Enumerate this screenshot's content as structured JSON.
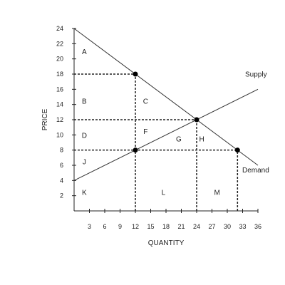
{
  "chart_data": {
    "type": "line",
    "xlabel": "QUANTITY",
    "ylabel": "PRICE",
    "xlim": [
      0,
      36
    ],
    "ylim": [
      0,
      24
    ],
    "x_ticks": [
      3,
      6,
      9,
      12,
      15,
      18,
      21,
      24,
      27,
      30,
      33,
      36
    ],
    "y_ticks": [
      2,
      4,
      6,
      8,
      10,
      12,
      14,
      16,
      18,
      20,
      22,
      24
    ],
    "series": [
      {
        "name": "Demand",
        "points": [
          [
            0,
            24
          ],
          [
            36,
            6
          ]
        ]
      },
      {
        "name": "Supply",
        "points": [
          [
            0,
            4
          ],
          [
            36,
            16
          ]
        ]
      }
    ],
    "points": [
      [
        12,
        18
      ],
      [
        24,
        12
      ],
      [
        12,
        8
      ],
      [
        32,
        8
      ]
    ],
    "reference_lines": [
      {
        "from": [
          0,
          18
        ],
        "to": [
          12,
          18
        ]
      },
      {
        "from": [
          0,
          12
        ],
        "to": [
          24,
          12
        ]
      },
      {
        "from": [
          0,
          8
        ],
        "to": [
          32,
          8
        ]
      },
      {
        "from": [
          12,
          0
        ],
        "to": [
          12,
          18
        ]
      },
      {
        "from": [
          24,
          0
        ],
        "to": [
          24,
          12
        ]
      },
      {
        "from": [
          32,
          0
        ],
        "to": [
          32,
          8
        ]
      }
    ],
    "region_labels": [
      {
        "text": "A",
        "x": 2,
        "y": 21
      },
      {
        "text": "B",
        "x": 2,
        "y": 14.5
      },
      {
        "text": "C",
        "x": 14,
        "y": 14.5
      },
      {
        "text": "D",
        "x": 2,
        "y": 10
      },
      {
        "text": "F",
        "x": 14,
        "y": 10.5
      },
      {
        "text": "G",
        "x": 20.5,
        "y": 9.5
      },
      {
        "text": "H",
        "x": 25,
        "y": 9.5
      },
      {
        "text": "J",
        "x": 2,
        "y": 6.5
      },
      {
        "text": "K",
        "x": 2,
        "y": 2.5
      },
      {
        "text": "L",
        "x": 17.5,
        "y": 2.5
      },
      {
        "text": "M",
        "x": 28,
        "y": 2.5
      }
    ]
  }
}
